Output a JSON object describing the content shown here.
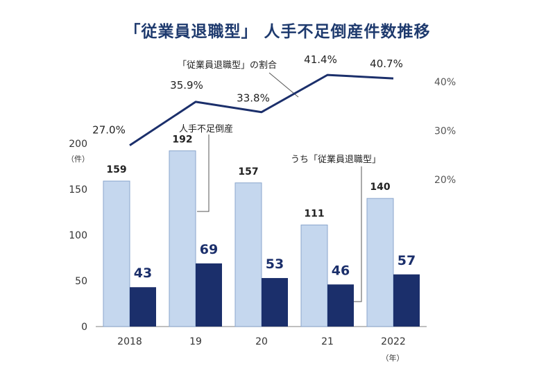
{
  "chart_data": {
    "type": "bar+line",
    "title": "「従業員退職型」 人手不足倒産件数推移",
    "categories": [
      "2018",
      "19",
      "20",
      "21",
      "2022"
    ],
    "x_unit": "（年）",
    "y_unit": "（件）",
    "ylim": [
      0,
      200
    ],
    "yticks": [
      "0",
      "50",
      "100",
      "150",
      "200"
    ],
    "y2lim": [
      0,
      45
    ],
    "y2ticks": [
      "20%",
      "30%",
      "40%"
    ],
    "y2tick_values": [
      20,
      30,
      40
    ],
    "series": [
      {
        "name": "人手不足倒産",
        "type": "bar",
        "values": [
          159,
          192,
          157,
          111,
          140
        ],
        "labels": [
          "159",
          "192",
          "157",
          "111",
          "140"
        ],
        "color": "#c5d7ee"
      },
      {
        "name": "うち「従業員退職型」",
        "type": "bar",
        "values": [
          43,
          69,
          53,
          46,
          57
        ],
        "labels": [
          "43",
          "69",
          "53",
          "46",
          "57"
        ],
        "color": "#1b2f6b"
      },
      {
        "name": "「従業員退職型」の割合",
        "type": "line",
        "values": [
          27.0,
          35.9,
          33.8,
          41.4,
          40.7
        ],
        "labels": [
          "27.0%",
          "35.9%",
          "33.8%",
          "41.4%",
          "40.7%"
        ],
        "color": "#1b2f6b"
      }
    ],
    "grid": false
  }
}
